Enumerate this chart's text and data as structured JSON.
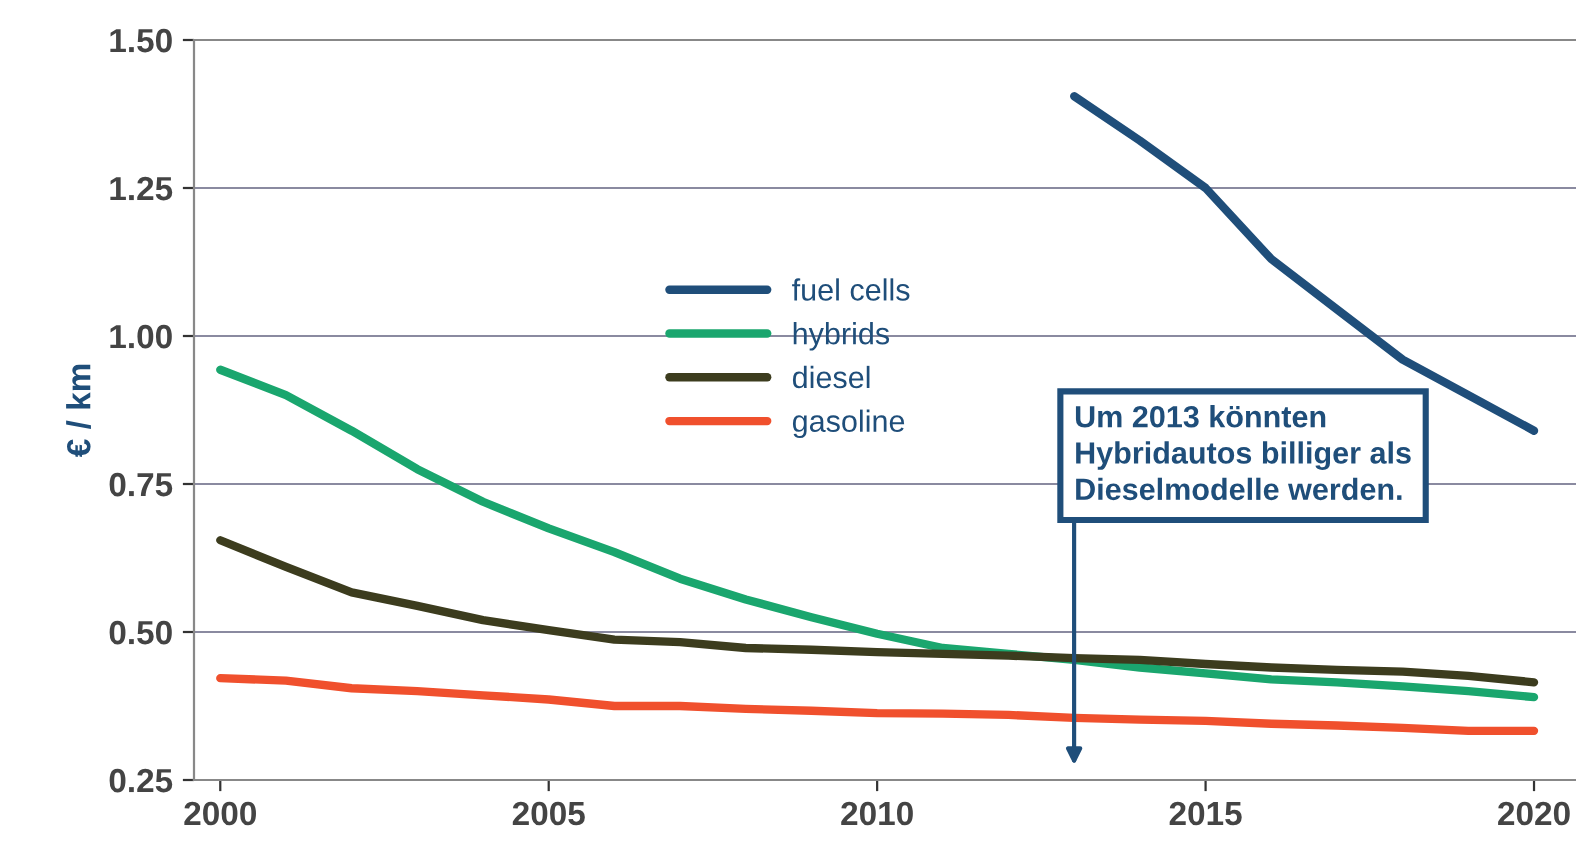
{
  "chart_data": {
    "type": "line",
    "ylabel": "€ / km",
    "x": [
      2000,
      2001,
      2002,
      2003,
      2004,
      2005,
      2006,
      2007,
      2008,
      2009,
      2010,
      2011,
      2012,
      2013,
      2014,
      2015,
      2016,
      2017,
      2018,
      2019,
      2020
    ],
    "series": [
      {
        "name": "fuel cells",
        "color": "#1f4e7a",
        "values": [
          null,
          null,
          null,
          null,
          null,
          null,
          null,
          null,
          null,
          null,
          null,
          null,
          null,
          1.405,
          1.33,
          1.25,
          1.13,
          1.045,
          0.96,
          0.9,
          0.84
        ]
      },
      {
        "name": "hybrids",
        "color": "#1aa66e",
        "values": [
          0.943,
          0.9,
          0.84,
          0.775,
          0.72,
          0.675,
          0.635,
          0.59,
          0.555,
          0.525,
          0.497,
          0.473,
          0.463,
          0.453,
          0.44,
          0.43,
          0.42,
          0.415,
          0.408,
          0.4,
          0.39
        ]
      },
      {
        "name": "diesel",
        "color": "#3c3c1e",
        "values": [
          0.655,
          0.61,
          0.567,
          0.544,
          0.52,
          0.503,
          0.487,
          0.483,
          0.473,
          0.47,
          0.466,
          0.463,
          0.46,
          0.456,
          0.453,
          0.446,
          0.44,
          0.436,
          0.433,
          0.426,
          0.415
        ]
      },
      {
        "name": "gasoline",
        "color": "#f0502d",
        "values": [
          0.422,
          0.418,
          0.405,
          0.4,
          0.393,
          0.386,
          0.375,
          0.375,
          0.37,
          0.367,
          0.363,
          0.362,
          0.36,
          0.355,
          0.352,
          0.35,
          0.345,
          0.342,
          0.338,
          0.333,
          0.333
        ]
      }
    ],
    "xlim": [
      1999.6,
      2020.7
    ],
    "xticks": [
      2000,
      2005,
      2010,
      2015,
      2020
    ],
    "ylim": [
      0.25,
      1.5
    ],
    "yticks": [
      {
        "value": 0.25,
        "label": "0.25"
      },
      {
        "value": 0.5,
        "label": "0.50"
      },
      {
        "value": 0.75,
        "label": "0.75"
      },
      {
        "value": 1.0,
        "label": "1.00"
      },
      {
        "value": 1.25,
        "label": "1.25"
      },
      {
        "value": 1.5,
        "label": "1.50"
      }
    ],
    "grid": "y",
    "legend": "center",
    "marker": "none",
    "line_style": "solid",
    "annotations": [
      "Um 2013 könnten\nHybridautos billiger als\nDieselmodelle werden."
    ]
  }
}
